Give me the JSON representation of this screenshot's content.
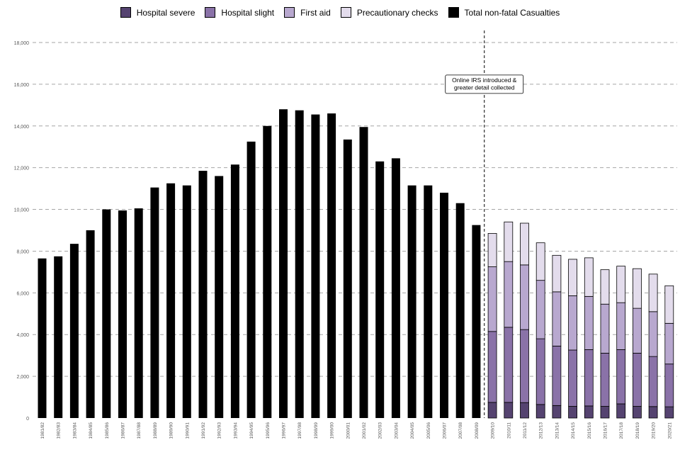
{
  "chart_data": {
    "type": "bar",
    "title": "",
    "xlabel": "",
    "ylabel": "",
    "ylim": [
      0,
      18000
    ],
    "yticks": [
      0,
      2000,
      4000,
      6000,
      8000,
      10000,
      12000,
      14000,
      16000,
      18000
    ],
    "ytick_labels": [
      "0",
      "2,000",
      "4,000",
      "6,000",
      "8,000",
      "10,000",
      "12,000",
      "14,000",
      "16,000",
      "18,000"
    ],
    "grid": "horizontal dashed",
    "legend_position": "top-center",
    "categories": [
      "1981/82",
      "1982/83",
      "1983/84",
      "1984/85",
      "1985/86",
      "1986/87",
      "1987/88",
      "1988/89",
      "1989/90",
      "1990/91",
      "1991/92",
      "1992/93",
      "1993/94",
      "1994/95",
      "1995/96",
      "1996/97",
      "1997/98",
      "1998/99",
      "1999/00",
      "2000/01",
      "2001/02",
      "2002/03",
      "2003/04",
      "2004/05",
      "2005/06",
      "2006/07",
      "2007/08",
      "2008/09",
      "2009/10",
      "2010/11",
      "2011/12",
      "2012/13",
      "2013/14",
      "2014/15",
      "2015/16",
      "2016/17",
      "2017/18",
      "2018/19",
      "2019/20",
      "2020/21"
    ],
    "series": [
      {
        "name": "Hospital severe",
        "color": "#554370",
        "stacked": true,
        "values": [
          null,
          null,
          null,
          null,
          null,
          null,
          null,
          null,
          null,
          null,
          null,
          null,
          null,
          null,
          null,
          null,
          null,
          null,
          null,
          null,
          null,
          null,
          null,
          null,
          null,
          null,
          null,
          null,
          750,
          750,
          740,
          650,
          600,
          560,
          580,
          560,
          680,
          560,
          550,
          540
        ]
      },
      {
        "name": "Hospital slight",
        "color": "#8a72a8",
        "stacked": true,
        "values": [
          null,
          null,
          null,
          null,
          null,
          null,
          null,
          null,
          null,
          null,
          null,
          null,
          null,
          null,
          null,
          null,
          null,
          null,
          null,
          null,
          null,
          null,
          null,
          null,
          null,
          null,
          null,
          null,
          3400,
          3600,
          3500,
          3150,
          2850,
          2700,
          2700,
          2550,
          2600,
          2550,
          2400,
          2050
        ]
      },
      {
        "name": "First aid",
        "color": "#b8a8cf",
        "stacked": true,
        "values": [
          null,
          null,
          null,
          null,
          null,
          null,
          null,
          null,
          null,
          null,
          null,
          null,
          null,
          null,
          null,
          null,
          null,
          null,
          null,
          null,
          null,
          null,
          null,
          null,
          null,
          null,
          null,
          null,
          3100,
          3150,
          3100,
          2800,
          2600,
          2600,
          2550,
          2350,
          2250,
          2150,
          2150,
          1950
        ]
      },
      {
        "name": "Precautionary checks",
        "color": "#e3dcec",
        "stacked": true,
        "values": [
          null,
          null,
          null,
          null,
          null,
          null,
          null,
          null,
          null,
          null,
          null,
          null,
          null,
          null,
          null,
          null,
          null,
          null,
          null,
          null,
          null,
          null,
          null,
          null,
          null,
          null,
          null,
          null,
          1600,
          1900,
          2000,
          1800,
          1750,
          1750,
          1850,
          1650,
          1750,
          1900,
          1800,
          1800
        ]
      },
      {
        "name": "Total non-fatal Casualties",
        "color": "#000000",
        "stacked": false,
        "values": [
          7650,
          7750,
          8350,
          9000,
          10000,
          9950,
          10050,
          11050,
          11250,
          11150,
          11850,
          11600,
          12150,
          13250,
          14000,
          14800,
          14750,
          14550,
          14600,
          13350,
          13950,
          12300,
          12450,
          11150,
          11150,
          10800,
          10300,
          9250,
          null,
          null,
          null,
          null,
          null,
          null,
          null,
          null,
          null,
          null,
          null,
          null
        ]
      }
    ],
    "annotations": [
      {
        "type": "vline",
        "position_between": [
          "2008/09",
          "2009/10"
        ],
        "style": "dashed",
        "label": "Online IRS introduced &\ngreater detail collected",
        "label_y": 16000
      }
    ]
  }
}
